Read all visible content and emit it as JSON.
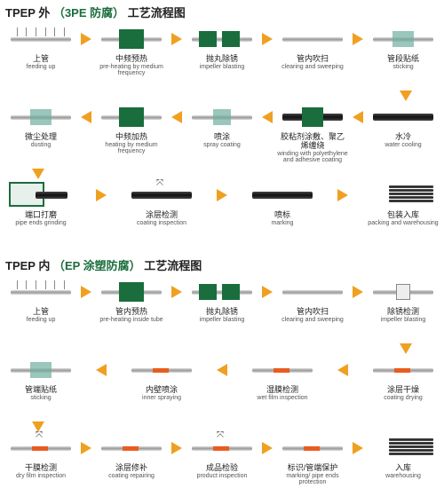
{
  "colors": {
    "green": "#1a6d3d",
    "lightgreen": "#6faea0",
    "arrow": "#f0a020",
    "orange": "#e85c1f",
    "black": "#222222"
  },
  "section1": {
    "title_parts": [
      {
        "text": "TPEP 外 ",
        "cls": "black"
      },
      {
        "text": "（3PE 防腐）",
        "cls": "green"
      },
      {
        "text": " 工艺流程图",
        "cls": "black"
      }
    ],
    "rows": [
      {
        "dir": "ltr",
        "steps": [
          {
            "cn": "上管",
            "en": "feeding up",
            "icon": "pipe-rack"
          },
          {
            "cn": "中频预热",
            "en": "pre-heating by medium frequency",
            "icon": "green-box"
          },
          {
            "cn": "抛丸除锈",
            "en": "impeller blasting",
            "icon": "dual-box"
          },
          {
            "cn": "管内吹扫",
            "en": "clearing and sweeping",
            "icon": "pipe"
          },
          {
            "cn": "管段贴纸",
            "en": "sticking",
            "icon": "light-box"
          }
        ]
      },
      {
        "dir": "rtl",
        "steps": [
          {
            "cn": "水冷",
            "en": "water cooling",
            "icon": "thick-pipe"
          },
          {
            "cn": "胶粘剂涂敷、聚乙烯缠绕",
            "en": "winding with polyethylene and adhesive coating",
            "icon": "thick-pipe-box"
          },
          {
            "cn": "喷涂",
            "en": "spray coating",
            "icon": "pipe-light"
          },
          {
            "cn": "中频加热",
            "en": "heating by medium frequency",
            "icon": "green-box"
          },
          {
            "cn": "微尘处理",
            "en": "dusting",
            "icon": "light-box"
          }
        ]
      },
      {
        "dir": "ltr",
        "steps": [
          {
            "cn": "端口打磨",
            "en": "pipe ends grinding",
            "icon": "frame-machine"
          },
          {
            "cn": "涂层检测",
            "en": "coating inspection",
            "icon": "coil-thick"
          },
          {
            "cn": "喷标",
            "en": "marking",
            "icon": "thick-pipe"
          },
          {
            "cn": "包装入库",
            "en": "packing and warehousing",
            "icon": "stack"
          }
        ]
      }
    ]
  },
  "section2": {
    "title_parts": [
      {
        "text": "TPEP 内 ",
        "cls": "black"
      },
      {
        "text": "（EP 涂塑防腐）",
        "cls": "green"
      },
      {
        "text": " 工艺流程图",
        "cls": "black"
      }
    ],
    "rows": [
      {
        "dir": "ltr",
        "steps": [
          {
            "cn": "上管",
            "en": "feeding up",
            "icon": "pipe-rack"
          },
          {
            "cn": "管内预热",
            "en": "pre-heating inside tube",
            "icon": "green-box"
          },
          {
            "cn": "抛丸除锈",
            "en": "impeller blasting",
            "icon": "dual-box"
          },
          {
            "cn": "管内吹扫",
            "en": "clearing and sweeping",
            "icon": "pipe"
          },
          {
            "cn": "除锈检测",
            "en": "impeller blasting",
            "icon": "pipe-rect"
          }
        ]
      },
      {
        "dir": "rtl",
        "steps": [
          {
            "cn": "涂层干燥",
            "en": "coating drying",
            "icon": "patch-pipe"
          },
          {
            "cn": "湿膜检测",
            "en": "wet film inspection",
            "icon": "patch-pipe"
          },
          {
            "cn": "内壁喷涂",
            "en": "inner spraying",
            "icon": "patch-pipe"
          },
          {
            "cn": "管端贴纸",
            "en": "sticking",
            "icon": "light-box"
          }
        ]
      },
      {
        "dir": "ltr",
        "steps": [
          {
            "cn": "干膜检测",
            "en": "dry film inspection",
            "icon": "coil-patch"
          },
          {
            "cn": "涂层修补",
            "en": "coating repairing",
            "icon": "patch-pipe"
          },
          {
            "cn": "成品检验",
            "en": "product inspection",
            "icon": "coil-patch"
          },
          {
            "cn": "标识/管端保护",
            "en": "marking/ pipe ends protection",
            "icon": "patch-pipe"
          },
          {
            "cn": "入库",
            "en": "warehousing",
            "icon": "stack"
          }
        ]
      }
    ]
  }
}
